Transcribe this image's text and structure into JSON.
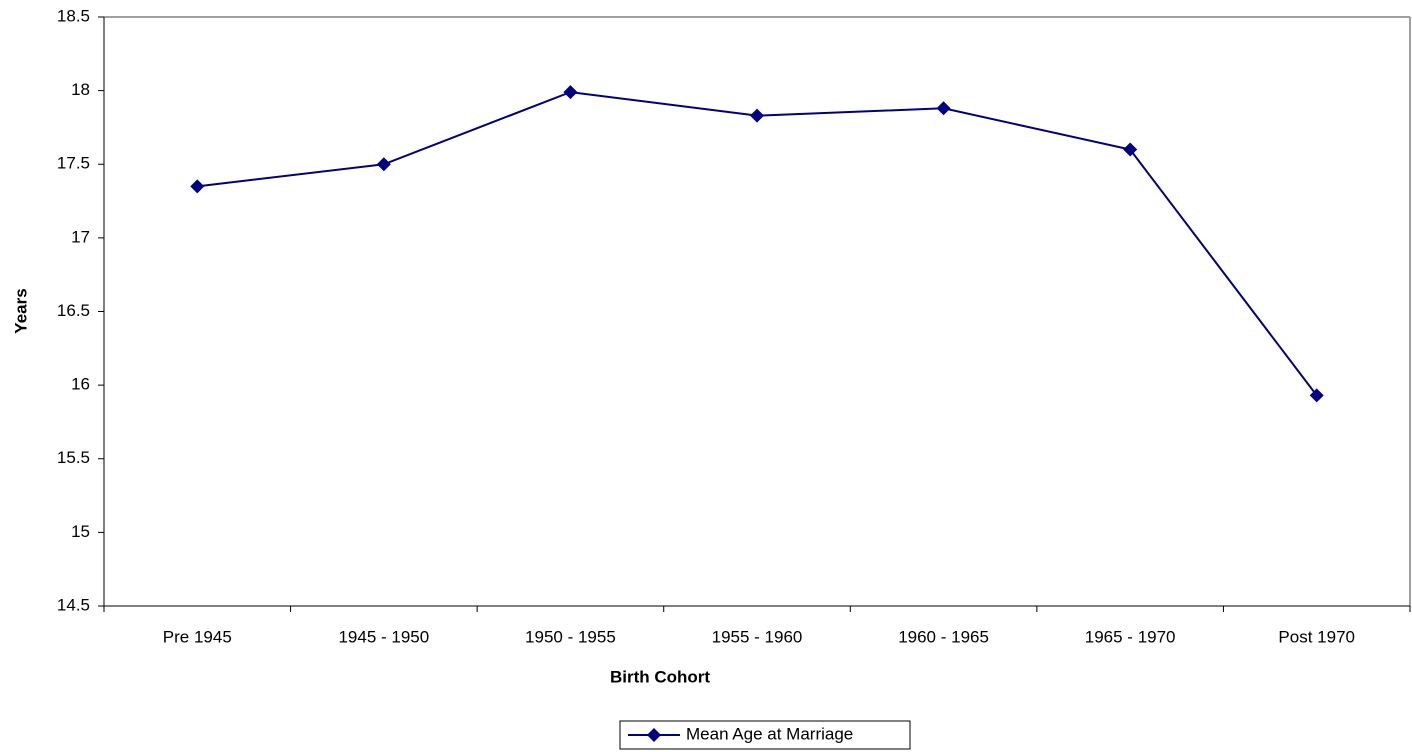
{
  "chart_data": {
    "type": "line",
    "x_label": "Birth Cohort",
    "y_label": "Years",
    "categories": [
      "Pre 1945",
      "1945 - 1950",
      "1950 - 1955",
      "1955 - 1960",
      "1960 - 1965",
      "1965 - 1970",
      "Post 1970"
    ],
    "series": [
      {
        "name": "Mean Age at Marriage",
        "color": "#000080",
        "values": [
          17.35,
          17.5,
          17.99,
          17.83,
          17.88,
          17.6,
          15.93
        ]
      }
    ],
    "ylim": [
      14.5,
      18.5
    ],
    "yticks": [
      14.5,
      15,
      15.5,
      16,
      16.5,
      17,
      17.5,
      18,
      18.5
    ],
    "grid": false,
    "legend": "bottom"
  }
}
